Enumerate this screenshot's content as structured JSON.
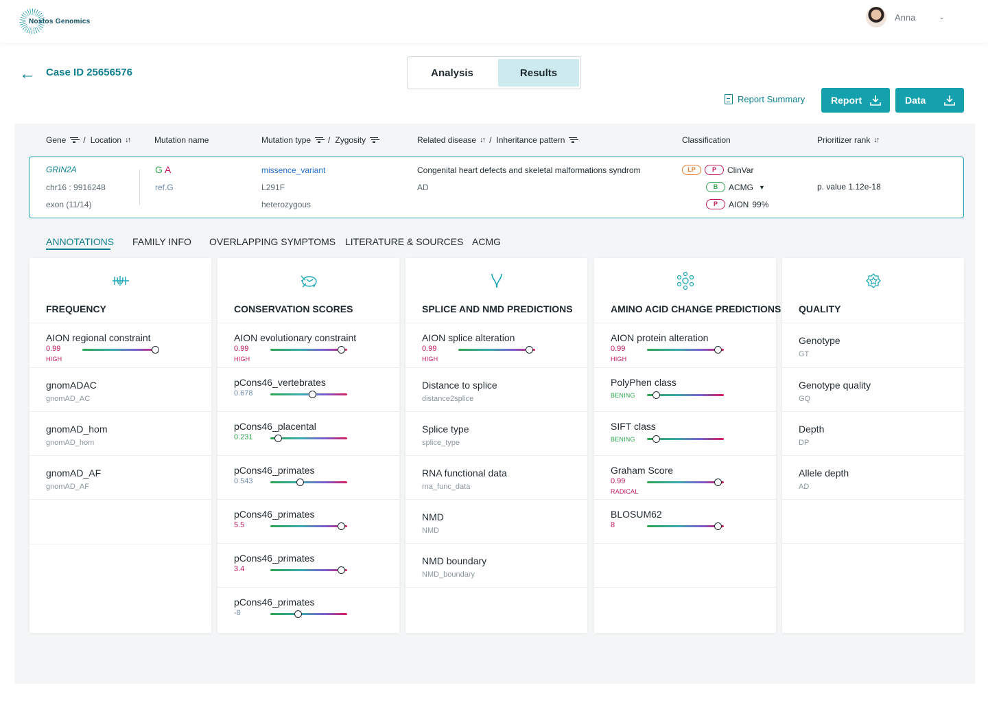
{
  "header": {
    "logo_text": "Nostos Genomics",
    "user_name": "Anna",
    "user_chevron": "⌄"
  },
  "case": {
    "back_icon": "←",
    "case_id": "Case ID 25656576"
  },
  "view_toggle": {
    "analysis": "Analysis",
    "results": "Results",
    "selected": "Results"
  },
  "actions": {
    "report_summary": "Report Summary",
    "report": "Report",
    "data": "Data"
  },
  "columns": {
    "gene": "Gene",
    "location": "Location",
    "mutation_name": "Mutation name",
    "mutation_type": "Mutation type",
    "zygosity": "Zygosity",
    "related_disease": "Related disease",
    "inheritance_pattern": "Inheritance pattern",
    "classification": "Classification",
    "prioritizer_rank": "Prioritizer rank",
    "slash": "/"
  },
  "variant": {
    "gene": "GRIN2A",
    "location": "chr16 : 9916248",
    "exon": "exon (11/14)",
    "ref": "G",
    "alt": "A",
    "ref_label": "ref.G",
    "mutation_type": "missence_variant",
    "protein_change": "L291F",
    "zygosity": "heterozygous",
    "related_disease": "Congenital heart defects and skeletal malformations syndrom",
    "inheritance": "AD",
    "classification": {
      "clinvar": {
        "pills": [
          "LP",
          "P"
        ],
        "source": "ClinVar"
      },
      "acmg": {
        "pill": "B",
        "source": "ACMG",
        "caret": "▼"
      },
      "aion": {
        "pill": "P",
        "source": "AION",
        "score": "99%"
      }
    },
    "prioritizer": "p. value 1.12e-18"
  },
  "tabs": [
    {
      "label": "ANNOTATIONS",
      "active": true
    },
    {
      "label": "FAMILY INFO",
      "active": false
    },
    {
      "label": "OVERLAPPING SYMPTOMS",
      "active": false
    },
    {
      "label": "LITERATURE & SOURCES",
      "active": false
    },
    {
      "label": "ACMG",
      "active": false
    }
  ],
  "cards": {
    "frequency": {
      "title": "FREQUENCY",
      "icon": "frequency-wave-icon",
      "rows": [
        {
          "label": "AION regional constraint",
          "value": "0.99",
          "tag": "HIGH",
          "level": 0.95
        },
        {
          "label": "gnomADAC",
          "sub": "gnomAD_AC"
        },
        {
          "label": "gnomAD_hom",
          "sub": "gnomAD_hom"
        },
        {
          "label": "gnomAD_AF",
          "sub": "gnomAD_AF"
        }
      ]
    },
    "conservation": {
      "title": "CONSERVATION SCORES",
      "icon": "turtle-icon",
      "rows": [
        {
          "label": "AION evolutionary constraint",
          "value": "0.99",
          "tag": "HIGH",
          "level": 0.92
        },
        {
          "label": "pCons46_vertebrates",
          "value": "0.678",
          "level": 0.55
        },
        {
          "label": "pCons46_placental",
          "value": "0.231",
          "level": 0.1
        },
        {
          "label": "pCons46_primates",
          "value": "0.543",
          "level": 0.39
        },
        {
          "label": "pCons46_primates",
          "value": "5.5",
          "level": 0.92
        },
        {
          "label": "pCons46_primates",
          "value": "3.4",
          "level": 0.92
        },
        {
          "label": "pCons46_primates",
          "value": "-8",
          "level": 0.36
        }
      ]
    },
    "splice": {
      "title": "SPLICE AND NMD PREDICTIONS",
      "icon": "splice-branch-icon",
      "rows": [
        {
          "label": "AION splice alteration",
          "value": "0.99",
          "tag": "HIGH",
          "level": 0.92
        },
        {
          "label": "Distance to splice",
          "sub": "distance2splice"
        },
        {
          "label": "Splice type",
          "sub": "splice_type"
        },
        {
          "label": "RNA functional data",
          "sub": "rna_func_data"
        },
        {
          "label": "NMD",
          "sub": "NMD"
        },
        {
          "label": "NMD boundary",
          "sub": "NMD_boundary"
        }
      ]
    },
    "amino": {
      "title": "AMINO ACID CHANGE PREDICTIONS",
      "icon": "molecule-icon",
      "rows": [
        {
          "label": "AION protein alteration",
          "value": "0.99",
          "tag": "HIGH",
          "level": 0.92
        },
        {
          "label": "PolyPhen class",
          "tag": "BENING",
          "level": 0.12
        },
        {
          "label": "SIFT class",
          "tag": "BENING",
          "level": 0.12
        },
        {
          "label": "Graham Score",
          "value": "0.99",
          "tag": "RADICAL",
          "level": 0.92
        },
        {
          "label": "BLOSUM62",
          "value": "8",
          "level": 0.92
        }
      ]
    },
    "quality": {
      "title": "QUALITY",
      "icon": "quality-badge-icon",
      "rows": [
        {
          "label": "Genotype",
          "sub": "GT"
        },
        {
          "label": "Genotype quality",
          "sub": "GQ"
        },
        {
          "label": "Depth",
          "sub": "DP"
        },
        {
          "label": "Allele depth",
          "sub": "AD"
        }
      ]
    }
  },
  "colors": {
    "accent": "#14a1ad",
    "teal_text": "#0f7f8f",
    "high_red": "#c2185b",
    "bening_green": "#2ea44f"
  }
}
